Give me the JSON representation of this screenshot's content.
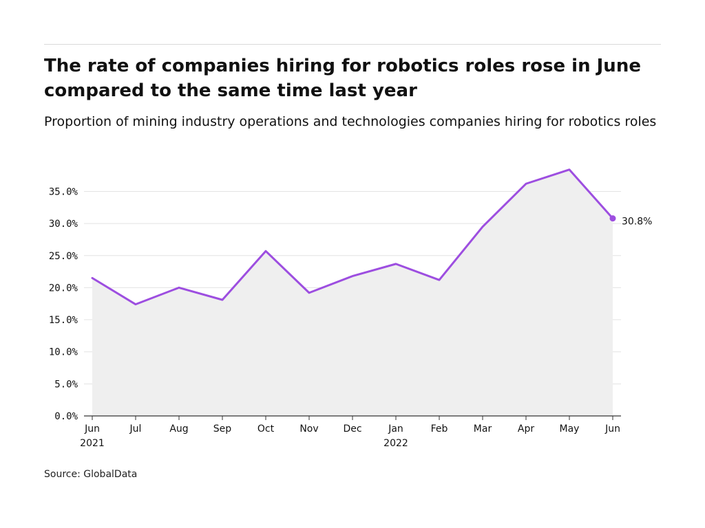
{
  "header": {
    "title": "The rate of companies hiring for robotics roles rose in June compared to the same time last year",
    "subtitle": "Proportion of mining industry operations and technologies companies hiring for robotics roles"
  },
  "footer": {
    "source": "Source: GlobalData"
  },
  "colors": {
    "line": "#9d4ee0",
    "area": "#efefef",
    "grid": "#e3e3e3",
    "axis": "#333333",
    "text": "#111111"
  },
  "chart_data": {
    "type": "area",
    "x_ticks": [
      {
        "month": "Jun",
        "year": "2021"
      },
      {
        "month": "Jul",
        "year": ""
      },
      {
        "month": "Aug",
        "year": ""
      },
      {
        "month": "Sep",
        "year": ""
      },
      {
        "month": "Oct",
        "year": ""
      },
      {
        "month": "Nov",
        "year": ""
      },
      {
        "month": "Dec",
        "year": ""
      },
      {
        "month": "Jan",
        "year": "2022"
      },
      {
        "month": "Feb",
        "year": ""
      },
      {
        "month": "Mar",
        "year": ""
      },
      {
        "month": "Apr",
        "year": ""
      },
      {
        "month": "May",
        "year": ""
      },
      {
        "month": "Jun",
        "year": ""
      }
    ],
    "values": [
      21.5,
      17.4,
      20.0,
      18.1,
      25.7,
      19.2,
      21.8,
      23.7,
      21.2,
      29.5,
      36.2,
      38.4,
      30.8
    ],
    "end_label": "30.8%",
    "y_ticks": [
      "0.0%",
      "5.0%",
      "10.0%",
      "15.0%",
      "20.0%",
      "25.0%",
      "30.0%",
      "35.0%"
    ],
    "ylim": [
      0,
      35
    ],
    "grid": true,
    "legend": "none"
  }
}
